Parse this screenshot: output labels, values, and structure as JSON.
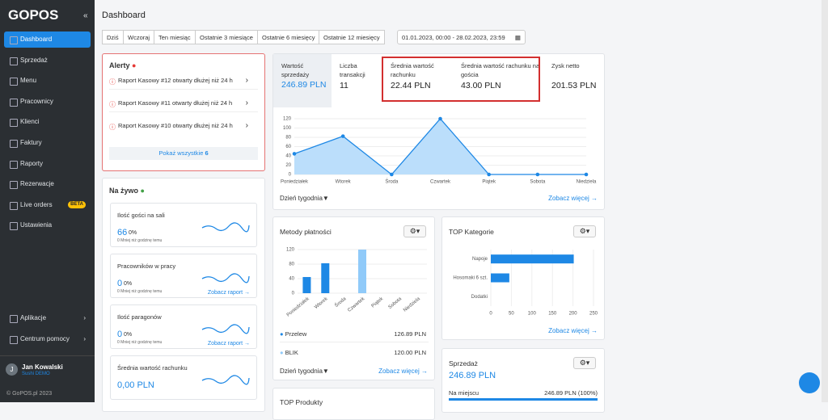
{
  "sidebar": {
    "logo": "GOPOS",
    "collapse": "«",
    "nav": [
      {
        "label": "Dashboard"
      },
      {
        "label": "Sprzedaż"
      },
      {
        "label": "Menu"
      },
      {
        "label": "Pracownicy"
      },
      {
        "label": "Klienci"
      },
      {
        "label": "Faktury"
      },
      {
        "label": "Raporty"
      },
      {
        "label": "Rezerwacje"
      },
      {
        "label": "Live orders",
        "badge": "BETA"
      },
      {
        "label": "Ustawienia"
      }
    ],
    "bottom": [
      "Aplikacje",
      "Centrum pomocy"
    ],
    "user": {
      "initial": "J",
      "name": "Jan Kowalski",
      "company": "Sushi DEMO"
    },
    "footer": "© GoPOS.pl 2023"
  },
  "header": {
    "title": "Dashboard",
    "filters": [
      "Dziś",
      "Wczoraj",
      "Ten miesiąc",
      "Ostatnie 3 miesiące",
      "Ostatnie 6 miesięcy",
      "Ostatnie 12 miesięcy"
    ],
    "date_range": "01.01.2023, 00:00 - 28.02.2023, 23:59"
  },
  "alerts": {
    "title": "Alerty",
    "items": [
      "Raport Kasowy #12 otwarty dłużej niż 24 h",
      "Raport Kasowy #11 otwarty dłużej niż 24 h",
      "Raport Kasowy #10 otwarty dłużej niż 24 h"
    ],
    "show_all": "Pokaż wszystkie",
    "show_all_count": 6
  },
  "live": {
    "title": "Na żywo",
    "cards": [
      {
        "title": "Ilość gości na sali",
        "value": "66",
        "percent": "0%",
        "note": "0 Mniej niż godzinę temu"
      },
      {
        "title": "Pracowników w pracy",
        "value": "0",
        "percent": "0%",
        "note": "0 Mniej niż godzinę temu",
        "link": "Zobacz raport →"
      },
      {
        "title": "Ilość paragonów",
        "value": "0",
        "percent": "0%",
        "note": "0 Mniej niż godzinę temu",
        "link": "Zobacz raport →"
      },
      {
        "title": "Średnia wartość rachunku",
        "value": "0,00 PLN"
      }
    ]
  },
  "kpis": [
    {
      "label": "Wartość sprzedaży",
      "value": "246.89 PLN"
    },
    {
      "label": "Liczba transakcji",
      "value": "11"
    },
    {
      "label": "Średnia wartość rachunku",
      "value": "22.44 PLN"
    },
    {
      "label": "Średnia wartość rachunku na gościa",
      "value": "43.00 PLN"
    },
    {
      "label": "Zysk netto",
      "value": "201.53 PLN"
    }
  ],
  "sales_chart": {
    "type": "area",
    "categories": [
      "Poniedziałek",
      "Wtorek",
      "Środa",
      "Czwartek",
      "Piątek",
      "Sobota",
      "Niedziela"
    ],
    "values": [
      44.5,
      82.39,
      0,
      120,
      0,
      0,
      0
    ],
    "ylim": [
      0,
      120
    ],
    "yticks": [
      0,
      20,
      40,
      60,
      80,
      100,
      120
    ],
    "color": "#1e88e5",
    "dropdown": "Dzień tygodnia",
    "link": "Zobacz więcej →"
  },
  "payments": {
    "title": "Metody płatności",
    "chart": {
      "type": "bar",
      "categories": [
        "Poniedziałek",
        "Wtorek",
        "Środa",
        "Czwartek",
        "Piątek",
        "Sobota",
        "Niedziela"
      ],
      "series": [
        {
          "name": "Przelew",
          "color": "#1e88e5",
          "values": [
            44.5,
            82.39,
            0,
            0,
            0,
            0,
            0
          ]
        },
        {
          "name": "BLIK",
          "color": "#90caf9",
          "values": [
            0,
            0,
            0,
            120,
            0,
            0,
            0
          ]
        }
      ],
      "ylim": [
        0,
        120
      ],
      "yticks": [
        0,
        40,
        80,
        120
      ]
    },
    "legend_values": [
      "126.89 PLN",
      "120.00 PLN"
    ],
    "dropdown": "Dzień tygodnia",
    "link": "Zobacz więcej →"
  },
  "top_categories": {
    "title": "TOP Kategorie",
    "chart": {
      "type": "barh",
      "categories": [
        "Napoje",
        "Hosomaki 6 szt.",
        "Dodatki"
      ],
      "values": [
        201.89,
        45,
        0
      ],
      "xlim": [
        0,
        250
      ],
      "xticks": [
        0,
        50,
        100,
        150,
        200,
        250
      ],
      "color": "#1e88e5"
    },
    "link": "Zobacz więcej →"
  },
  "sales_card": {
    "title": "Sprzedaż",
    "value": "246.89 PLN",
    "rows": [
      {
        "label": "Na miejscu",
        "value": "246.89 PLN (100%)"
      }
    ]
  },
  "top_products": {
    "title": "TOP Produkty"
  }
}
